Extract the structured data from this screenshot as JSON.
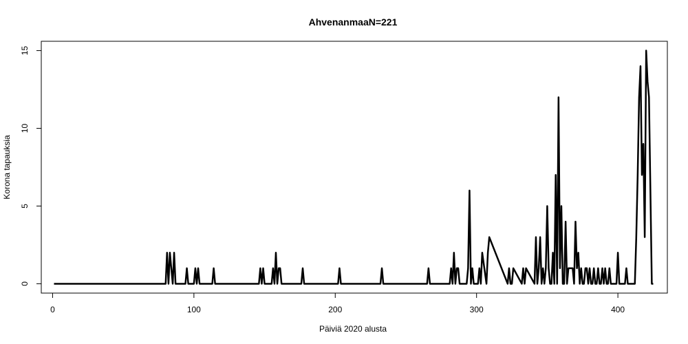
{
  "chart_data": {
    "type": "line",
    "title": "AhvenanmaaN=221",
    "xlabel": "Päiviä 2020 alusta",
    "ylabel": "Korona tapauksia",
    "xlim": [
      -8,
      435
    ],
    "ylim": [
      -0.6,
      15.6
    ],
    "x_ticks": [
      0,
      100,
      200,
      300,
      400
    ],
    "y_ticks": [
      0,
      5,
      10,
      15
    ],
    "x_tick_labels": [
      "0",
      "100",
      "200",
      "300",
      "400"
    ],
    "y_tick_labels": [
      "0",
      "5",
      "10",
      "15"
    ],
    "line_color": "#000000",
    "series": [
      {
        "x": [
          1,
          80,
          81,
          82,
          83,
          84,
          85,
          86,
          87,
          94,
          95,
          96,
          100,
          101,
          102,
          103,
          104,
          113,
          114,
          115,
          146,
          147,
          148,
          149,
          150,
          155,
          156,
          157,
          158,
          159,
          160,
          161,
          162,
          163,
          176,
          177,
          178,
          202,
          203,
          204,
          232,
          233,
          234,
          265,
          266,
          267,
          281,
          282,
          283,
          284,
          285,
          286,
          287,
          288,
          293,
          294,
          295,
          296,
          297,
          298,
          301,
          302,
          303,
          304,
          307,
          308,
          309,
          322,
          323,
          324,
          325,
          326,
          332,
          333,
          334,
          335,
          341,
          342,
          343,
          344,
          345,
          346,
          347,
          348,
          349,
          350,
          351,
          352,
          353,
          354,
          355,
          356,
          357,
          358,
          359,
          360,
          361,
          362,
          363,
          364,
          365,
          366,
          367,
          368,
          369,
          370,
          371,
          372,
          373,
          374,
          375,
          376,
          377,
          378,
          379,
          380,
          381,
          382,
          383,
          384,
          385,
          386,
          387,
          388,
          389,
          390,
          391,
          392,
          393,
          394,
          395,
          396,
          397,
          398,
          399,
          400,
          401,
          402,
          403,
          404,
          405,
          406,
          407,
          408,
          409,
          410,
          411,
          412,
          413,
          414,
          415,
          416,
          417,
          418,
          419,
          420,
          421,
          422,
          423,
          424,
          425
        ],
        "y": [
          0,
          0,
          2,
          0,
          2,
          1,
          0,
          2,
          0,
          0,
          1,
          0,
          0,
          1,
          0,
          1,
          0,
          0,
          1,
          0,
          0,
          1,
          0,
          1,
          0,
          0,
          1,
          0,
          2,
          0,
          1,
          1,
          0,
          0,
          0,
          1,
          0,
          0,
          1,
          0,
          0,
          1,
          0,
          0,
          1,
          0,
          0,
          1,
          0,
          2,
          0,
          1,
          1,
          0,
          0,
          1,
          6,
          0,
          1,
          0,
          0,
          1,
          0,
          2,
          0,
          2,
          3,
          0,
          1,
          0,
          0,
          1,
          0,
          1,
          0,
          1,
          0,
          3,
          0,
          1,
          3,
          0,
          1,
          0,
          1,
          5,
          1,
          0,
          0,
          2,
          0,
          7,
          0,
          12,
          1,
          5,
          0,
          0,
          4,
          0,
          1,
          1,
          1,
          1,
          0,
          4,
          1,
          2,
          0,
          1,
          0,
          0,
          1,
          1,
          0,
          1,
          0,
          0,
          1,
          0,
          0,
          1,
          0,
          0,
          1,
          0,
          1,
          0,
          0,
          1,
          0,
          0,
          0,
          0,
          0,
          2,
          0,
          0,
          0,
          0,
          0,
          1,
          0,
          0,
          0,
          0,
          0,
          0,
          3,
          7,
          12,
          14,
          7,
          9,
          3,
          15,
          13,
          12,
          6,
          0,
          0
        ]
      }
    ]
  }
}
